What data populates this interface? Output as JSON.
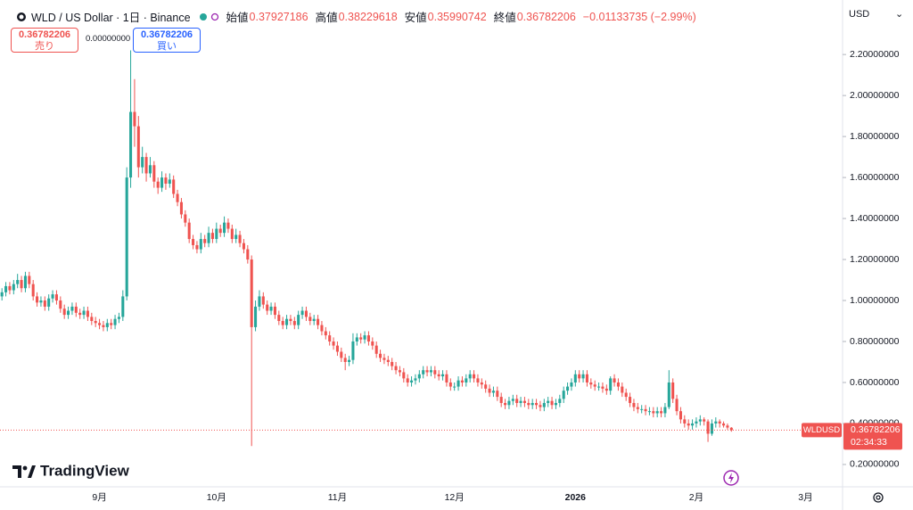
{
  "chart_data": {
    "type": "candlestick",
    "title": "WLD / US Dollar · 1日 · Binance",
    "ohlc_labels": [
      "始値",
      "高値",
      "安値",
      "終値"
    ],
    "change": "−0.01133735 (−2.99%)",
    "sell_label": "売り",
    "buy_label": "買い",
    "spread": "0.00000000",
    "currency": "USD",
    "symbol": "WLDUSD",
    "countdown": "02:34:33",
    "brand": "TradingView",
    "up_color": "#26a69a",
    "down_color": "#ef5350",
    "grid": false,
    "ylim": [
      0.091,
      2.466
    ],
    "yticks": [
      {
        "value": 0.2,
        "label": "0.20000000"
      },
      {
        "value": 0.4,
        "label": "0.40000000"
      },
      {
        "value": 0.6,
        "label": "0.60000000"
      },
      {
        "value": 0.8,
        "label": "0.80000000"
      },
      {
        "value": 1.0,
        "label": "1.00000000"
      },
      {
        "value": 1.2,
        "label": "1.20000000"
      },
      {
        "value": 1.4,
        "label": "1.40000000"
      },
      {
        "value": 1.6,
        "label": "1.60000000"
      },
      {
        "value": 1.8,
        "label": "1.80000000"
      },
      {
        "value": 2.0,
        "label": "2.00000000"
      },
      {
        "value": 2.2,
        "label": "2.20000000"
      }
    ],
    "categories": [
      null,
      null,
      null,
      null,
      null,
      null,
      null,
      null,
      null,
      null,
      null,
      null,
      null,
      null,
      null,
      null,
      null,
      null,
      null,
      null,
      null,
      null,
      null,
      null,
      null,
      "9月",
      null,
      null,
      null,
      null,
      null,
      null,
      null,
      null,
      null,
      null,
      null,
      null,
      null,
      null,
      null,
      null,
      null,
      null,
      null,
      null,
      null,
      null,
      null,
      null,
      null,
      null,
      null,
      null,
      null,
      "10月",
      null,
      null,
      null,
      null,
      null,
      null,
      null,
      null,
      null,
      null,
      null,
      null,
      null,
      null,
      null,
      null,
      null,
      null,
      null,
      null,
      null,
      null,
      null,
      null,
      null,
      null,
      null,
      null,
      null,
      null,
      "11月",
      null,
      null,
      null,
      null,
      null,
      null,
      null,
      null,
      null,
      null,
      null,
      null,
      null,
      null,
      null,
      null,
      null,
      null,
      null,
      null,
      null,
      null,
      null,
      null,
      null,
      null,
      null,
      null,
      null,
      "12月",
      null,
      null,
      null,
      null,
      null,
      null,
      null,
      null,
      null,
      null,
      null,
      null,
      null,
      null,
      null,
      null,
      null,
      null,
      null,
      null,
      null,
      null,
      null,
      null,
      null,
      null,
      null,
      null,
      null,
      null,
      "2026",
      null,
      null,
      null,
      null,
      null,
      null,
      null,
      null,
      null,
      null,
      null,
      null,
      null,
      null,
      null,
      null,
      null,
      null,
      null,
      null,
      null,
      null,
      null,
      null,
      null,
      null,
      null,
      null,
      null,
      null,
      "2月",
      null,
      null,
      null,
      null,
      null,
      null,
      null,
      null,
      null,
      null,
      null,
      null,
      null,
      null,
      null,
      null,
      null,
      null,
      null,
      null,
      null,
      null,
      null,
      null,
      null,
      null,
      null,
      "3月",
      null,
      null,
      null,
      null,
      null,
      null,
      null,
      null,
      null
    ],
    "candles": [
      [
        1.02,
        1.06,
        1.0,
        1.04
      ],
      [
        1.04,
        1.09,
        1.02,
        1.07
      ],
      [
        1.07,
        1.09,
        1.03,
        1.05
      ],
      [
        1.05,
        1.1,
        1.03,
        1.08
      ],
      [
        1.08,
        1.13,
        1.06,
        1.1
      ],
      [
        1.1,
        1.12,
        1.04,
        1.06
      ],
      [
        1.06,
        1.14,
        1.04,
        1.12
      ],
      [
        1.12,
        1.14,
        1.06,
        1.08
      ],
      [
        1.08,
        1.1,
        1.0,
        1.02
      ],
      [
        1.02,
        1.04,
        0.97,
        0.99
      ],
      [
        0.99,
        1.02,
        0.97,
        1.0
      ],
      [
        1.0,
        1.02,
        0.95,
        0.97
      ],
      [
        0.97,
        1.03,
        0.95,
        1.01
      ],
      [
        1.01,
        1.05,
        0.99,
        1.03
      ],
      [
        1.03,
        1.05,
        0.98,
        1.0
      ],
      [
        1.0,
        1.02,
        0.94,
        0.96
      ],
      [
        0.96,
        0.98,
        0.91,
        0.93
      ],
      [
        0.93,
        0.97,
        0.91,
        0.95
      ],
      [
        0.95,
        0.99,
        0.93,
        0.97
      ],
      [
        0.97,
        0.99,
        0.92,
        0.94
      ],
      [
        0.94,
        0.96,
        0.91,
        0.93
      ],
      [
        0.93,
        0.97,
        0.91,
        0.95
      ],
      [
        0.95,
        0.97,
        0.9,
        0.92
      ],
      [
        0.92,
        0.94,
        0.88,
        0.9
      ],
      [
        0.9,
        0.92,
        0.87,
        0.89
      ],
      [
        0.89,
        0.91,
        0.86,
        0.88
      ],
      [
        0.88,
        0.9,
        0.85,
        0.87
      ],
      [
        0.87,
        0.91,
        0.85,
        0.89
      ],
      [
        0.89,
        0.91,
        0.86,
        0.88
      ],
      [
        0.88,
        0.93,
        0.86,
        0.91
      ],
      [
        0.91,
        0.94,
        0.89,
        0.92
      ],
      [
        0.92,
        1.05,
        0.9,
        1.02
      ],
      [
        1.02,
        1.65,
        1.0,
        1.6
      ],
      [
        1.6,
        2.22,
        1.55,
        1.92
      ],
      [
        1.92,
        2.08,
        1.75,
        1.85
      ],
      [
        1.85,
        1.9,
        1.6,
        1.65
      ],
      [
        1.65,
        1.75,
        1.62,
        1.7
      ],
      [
        1.7,
        1.72,
        1.58,
        1.62
      ],
      [
        1.62,
        1.7,
        1.6,
        1.66
      ],
      [
        1.66,
        1.68,
        1.55,
        1.58
      ],
      [
        1.58,
        1.6,
        1.52,
        1.55
      ],
      [
        1.55,
        1.63,
        1.53,
        1.6
      ],
      [
        1.6,
        1.62,
        1.54,
        1.57
      ],
      [
        1.57,
        1.62,
        1.55,
        1.59
      ],
      [
        1.59,
        1.61,
        1.5,
        1.52
      ],
      [
        1.52,
        1.54,
        1.46,
        1.48
      ],
      [
        1.48,
        1.5,
        1.4,
        1.42
      ],
      [
        1.42,
        1.44,
        1.36,
        1.38
      ],
      [
        1.38,
        1.4,
        1.28,
        1.3
      ],
      [
        1.3,
        1.32,
        1.25,
        1.27
      ],
      [
        1.27,
        1.29,
        1.23,
        1.25
      ],
      [
        1.25,
        1.33,
        1.23,
        1.3
      ],
      [
        1.3,
        1.32,
        1.26,
        1.28
      ],
      [
        1.28,
        1.36,
        1.26,
        1.33
      ],
      [
        1.33,
        1.35,
        1.28,
        1.3
      ],
      [
        1.3,
        1.38,
        1.28,
        1.35
      ],
      [
        1.35,
        1.37,
        1.31,
        1.33
      ],
      [
        1.33,
        1.41,
        1.31,
        1.38
      ],
      [
        1.38,
        1.4,
        1.33,
        1.35
      ],
      [
        1.35,
        1.37,
        1.28,
        1.3
      ],
      [
        1.3,
        1.35,
        1.28,
        1.32
      ],
      [
        1.32,
        1.34,
        1.26,
        1.28
      ],
      [
        1.28,
        1.3,
        1.23,
        1.25
      ],
      [
        1.25,
        1.27,
        1.18,
        1.2
      ],
      [
        1.2,
        1.22,
        0.29,
        0.87
      ],
      [
        0.87,
        1.0,
        0.85,
        0.97
      ],
      [
        0.97,
        1.05,
        0.95,
        1.02
      ],
      [
        1.02,
        1.04,
        0.96,
        0.98
      ],
      [
        0.98,
        1.0,
        0.93,
        0.95
      ],
      [
        0.95,
        0.99,
        0.93,
        0.97
      ],
      [
        0.97,
        0.99,
        0.91,
        0.93
      ],
      [
        0.93,
        0.95,
        0.88,
        0.9
      ],
      [
        0.9,
        0.92,
        0.86,
        0.88
      ],
      [
        0.88,
        0.93,
        0.86,
        0.91
      ],
      [
        0.91,
        0.93,
        0.88,
        0.9
      ],
      [
        0.9,
        0.92,
        0.86,
        0.88
      ],
      [
        0.88,
        0.95,
        0.86,
        0.93
      ],
      [
        0.93,
        0.97,
        0.91,
        0.95
      ],
      [
        0.95,
        0.97,
        0.9,
        0.92
      ],
      [
        0.92,
        0.94,
        0.88,
        0.9
      ],
      [
        0.9,
        0.93,
        0.88,
        0.91
      ],
      [
        0.91,
        0.93,
        0.86,
        0.88
      ],
      [
        0.88,
        0.9,
        0.83,
        0.85
      ],
      [
        0.85,
        0.87,
        0.81,
        0.83
      ],
      [
        0.83,
        0.85,
        0.78,
        0.8
      ],
      [
        0.8,
        0.82,
        0.76,
        0.78
      ],
      [
        0.78,
        0.8,
        0.73,
        0.75
      ],
      [
        0.75,
        0.77,
        0.7,
        0.72
      ],
      [
        0.72,
        0.74,
        0.66,
        0.7
      ],
      [
        0.7,
        0.73,
        0.68,
        0.71
      ],
      [
        0.71,
        0.84,
        0.69,
        0.8
      ],
      [
        0.8,
        0.84,
        0.78,
        0.82
      ],
      [
        0.82,
        0.84,
        0.79,
        0.81
      ],
      [
        0.81,
        0.85,
        0.79,
        0.83
      ],
      [
        0.83,
        0.85,
        0.78,
        0.8
      ],
      [
        0.8,
        0.82,
        0.76,
        0.78
      ],
      [
        0.78,
        0.8,
        0.72,
        0.74
      ],
      [
        0.74,
        0.76,
        0.7,
        0.72
      ],
      [
        0.72,
        0.74,
        0.69,
        0.71
      ],
      [
        0.71,
        0.73,
        0.68,
        0.7
      ],
      [
        0.7,
        0.72,
        0.66,
        0.68
      ],
      [
        0.68,
        0.7,
        0.64,
        0.66
      ],
      [
        0.66,
        0.68,
        0.63,
        0.65
      ],
      [
        0.65,
        0.67,
        0.6,
        0.62
      ],
      [
        0.62,
        0.64,
        0.58,
        0.6
      ],
      [
        0.6,
        0.63,
        0.58,
        0.61
      ],
      [
        0.61,
        0.64,
        0.59,
        0.62
      ],
      [
        0.62,
        0.66,
        0.6,
        0.64
      ],
      [
        0.64,
        0.68,
        0.62,
        0.66
      ],
      [
        0.66,
        0.68,
        0.63,
        0.65
      ],
      [
        0.65,
        0.68,
        0.63,
        0.66
      ],
      [
        0.66,
        0.68,
        0.62,
        0.64
      ],
      [
        0.64,
        0.66,
        0.61,
        0.63
      ],
      [
        0.63,
        0.66,
        0.61,
        0.64
      ],
      [
        0.64,
        0.66,
        0.58,
        0.6
      ],
      [
        0.6,
        0.62,
        0.56,
        0.58
      ],
      [
        0.58,
        0.6,
        0.56,
        0.58
      ],
      [
        0.58,
        0.63,
        0.56,
        0.61
      ],
      [
        0.61,
        0.63,
        0.58,
        0.6
      ],
      [
        0.6,
        0.64,
        0.58,
        0.62
      ],
      [
        0.62,
        0.66,
        0.6,
        0.64
      ],
      [
        0.64,
        0.66,
        0.6,
        0.62
      ],
      [
        0.62,
        0.64,
        0.58,
        0.6
      ],
      [
        0.6,
        0.62,
        0.57,
        0.59
      ],
      [
        0.59,
        0.61,
        0.55,
        0.57
      ],
      [
        0.57,
        0.59,
        0.53,
        0.55
      ],
      [
        0.55,
        0.58,
        0.53,
        0.56
      ],
      [
        0.56,
        0.58,
        0.51,
        0.53
      ],
      [
        0.53,
        0.55,
        0.48,
        0.5
      ],
      [
        0.5,
        0.52,
        0.47,
        0.49
      ],
      [
        0.49,
        0.53,
        0.47,
        0.51
      ],
      [
        0.51,
        0.54,
        0.49,
        0.52
      ],
      [
        0.52,
        0.54,
        0.48,
        0.5
      ],
      [
        0.5,
        0.53,
        0.48,
        0.51
      ],
      [
        0.51,
        0.53,
        0.48,
        0.5
      ],
      [
        0.5,
        0.52,
        0.47,
        0.49
      ],
      [
        0.49,
        0.52,
        0.47,
        0.5
      ],
      [
        0.5,
        0.52,
        0.47,
        0.49
      ],
      [
        0.49,
        0.51,
        0.46,
        0.48
      ],
      [
        0.48,
        0.52,
        0.46,
        0.5
      ],
      [
        0.5,
        0.53,
        0.48,
        0.51
      ],
      [
        0.51,
        0.53,
        0.47,
        0.49
      ],
      [
        0.49,
        0.52,
        0.47,
        0.5
      ],
      [
        0.5,
        0.54,
        0.48,
        0.52
      ],
      [
        0.52,
        0.58,
        0.5,
        0.56
      ],
      [
        0.56,
        0.6,
        0.54,
        0.58
      ],
      [
        0.58,
        0.62,
        0.56,
        0.6
      ],
      [
        0.6,
        0.66,
        0.58,
        0.64
      ],
      [
        0.64,
        0.66,
        0.6,
        0.62
      ],
      [
        0.62,
        0.66,
        0.6,
        0.64
      ],
      [
        0.64,
        0.66,
        0.58,
        0.6
      ],
      [
        0.6,
        0.62,
        0.57,
        0.59
      ],
      [
        0.59,
        0.61,
        0.56,
        0.58
      ],
      [
        0.58,
        0.6,
        0.56,
        0.58
      ],
      [
        0.58,
        0.6,
        0.55,
        0.57
      ],
      [
        0.57,
        0.59,
        0.54,
        0.56
      ],
      [
        0.56,
        0.63,
        0.54,
        0.62
      ],
      [
        0.62,
        0.64,
        0.58,
        0.6
      ],
      [
        0.6,
        0.62,
        0.56,
        0.58
      ],
      [
        0.58,
        0.6,
        0.53,
        0.55
      ],
      [
        0.55,
        0.57,
        0.51,
        0.53
      ],
      [
        0.53,
        0.55,
        0.48,
        0.5
      ],
      [
        0.5,
        0.52,
        0.46,
        0.48
      ],
      [
        0.48,
        0.5,
        0.45,
        0.47
      ],
      [
        0.47,
        0.49,
        0.45,
        0.47
      ],
      [
        0.47,
        0.49,
        0.44,
        0.46
      ],
      [
        0.46,
        0.48,
        0.44,
        0.46
      ],
      [
        0.46,
        0.48,
        0.43,
        0.45
      ],
      [
        0.45,
        0.48,
        0.43,
        0.46
      ],
      [
        0.46,
        0.48,
        0.43,
        0.45
      ],
      [
        0.45,
        0.5,
        0.43,
        0.48
      ],
      [
        0.48,
        0.66,
        0.47,
        0.6
      ],
      [
        0.6,
        0.62,
        0.5,
        0.52
      ],
      [
        0.52,
        0.54,
        0.44,
        0.46
      ],
      [
        0.46,
        0.48,
        0.4,
        0.42
      ],
      [
        0.42,
        0.44,
        0.38,
        0.4
      ],
      [
        0.4,
        0.42,
        0.37,
        0.39
      ],
      [
        0.39,
        0.42,
        0.37,
        0.4
      ],
      [
        0.4,
        0.43,
        0.38,
        0.41
      ],
      [
        0.41,
        0.44,
        0.39,
        0.42
      ],
      [
        0.42,
        0.43,
        0.39,
        0.41
      ],
      [
        0.41,
        0.42,
        0.31,
        0.35
      ],
      [
        0.35,
        0.42,
        0.34,
        0.4
      ],
      [
        0.4,
        0.43,
        0.38,
        0.41
      ],
      [
        0.41,
        0.42,
        0.38,
        0.4
      ],
      [
        0.4,
        0.41,
        0.38,
        0.39
      ],
      [
        0.39,
        0.4,
        0.37,
        0.38
      ],
      [
        0.37927186,
        0.38229618,
        0.35990742,
        0.36782206
      ],
      null,
      null,
      null,
      null,
      null,
      null,
      null,
      null,
      null,
      null,
      null,
      null,
      null,
      null,
      null,
      null,
      null,
      null,
      null,
      null,
      null,
      null,
      null,
      null,
      null,
      null,
      null,
      null
    ]
  }
}
